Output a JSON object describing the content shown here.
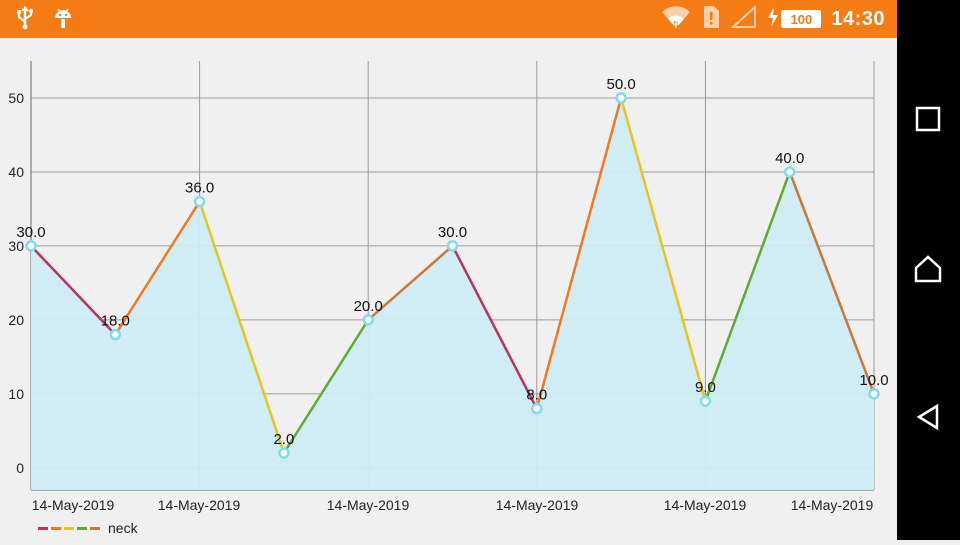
{
  "status_bar": {
    "time": "14:30",
    "battery": "100",
    "icons": [
      "usb-icon",
      "android-debug-icon",
      "wifi-icon",
      "sim-alert-icon",
      "no-signal-icon",
      "charging-icon"
    ]
  },
  "nav_bar": {
    "icons": [
      "recents-icon",
      "home-icon",
      "back-icon"
    ]
  },
  "colors": {
    "status_bar": "#f57c14",
    "fill": "#cdebf4",
    "point": "#7fdcec",
    "grid": "#9a9a9a",
    "segments": [
      "#c2305e",
      "#f07a22",
      "#e6c61c",
      "#62a834",
      "#c97838"
    ]
  },
  "chart_data": {
    "type": "area",
    "title": "",
    "xlabel": "",
    "ylabel": "",
    "ylim": [
      -3,
      55
    ],
    "yticks": [
      0,
      10,
      20,
      30,
      40,
      50
    ],
    "xtick_labels": [
      "14-May-2019",
      "14-May-2019",
      "14-May-2019",
      "14-May-2019",
      "14-May-2019",
      "14-May-2019"
    ],
    "legend": {
      "label": "neck",
      "position": "bottom-left"
    },
    "grid": true,
    "series": [
      {
        "name": "neck",
        "values": [
          30,
          18,
          36,
          2,
          20,
          30,
          8,
          50,
          9,
          40,
          10
        ],
        "value_labels": [
          "30.0",
          "18.0",
          "36.0",
          "2.0",
          "20.0",
          "30.0",
          "8.0",
          "50.0",
          "9.0",
          "40.0",
          "10.0"
        ]
      }
    ]
  }
}
